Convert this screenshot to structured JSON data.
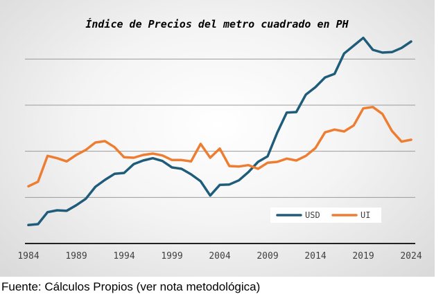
{
  "chart_data": {
    "type": "line",
    "title": "Índice de Precios del metro cuadrado en PH",
    "xlabel": "",
    "ylabel": "",
    "x": [
      1984,
      1985,
      1986,
      1987,
      1988,
      1989,
      1990,
      1991,
      1992,
      1993,
      1994,
      1995,
      1996,
      1997,
      1998,
      1999,
      2000,
      2001,
      2002,
      2003,
      2004,
      2005,
      2006,
      2007,
      2008,
      2009,
      2010,
      2011,
      2012,
      2013,
      2014,
      2015,
      2016,
      2017,
      2018,
      2019,
      2020,
      2021,
      2022,
      2023,
      2024
    ],
    "x_ticks": [
      "1984",
      "1989",
      "1994",
      "1999",
      "2004",
      "2009",
      "2014",
      "2019",
      "2024"
    ],
    "xlim": [
      1984,
      2024
    ],
    "ylim": [
      0,
      4.5
    ],
    "y_gridlines": [
      1,
      2,
      3,
      4
    ],
    "y_tick_labels_shown": false,
    "grid": true,
    "legend_position": "bottom-right",
    "series": [
      {
        "name": "USD",
        "color": "#1f5c7a",
        "values": [
          0.4,
          0.42,
          0.68,
          0.72,
          0.71,
          0.83,
          0.97,
          1.23,
          1.38,
          1.51,
          1.53,
          1.72,
          1.8,
          1.85,
          1.79,
          1.65,
          1.62,
          1.5,
          1.35,
          1.04,
          1.27,
          1.28,
          1.37,
          1.55,
          1.77,
          1.89,
          2.4,
          2.84,
          2.85,
          3.23,
          3.39,
          3.6,
          3.68,
          4.12,
          4.29,
          4.46,
          4.2,
          4.14,
          4.15,
          4.24,
          4.38
        ]
      },
      {
        "name": "UI",
        "color": "#ed7d31",
        "values": [
          1.24,
          1.34,
          1.9,
          1.85,
          1.78,
          1.92,
          2.03,
          2.19,
          2.22,
          2.09,
          1.87,
          1.86,
          1.92,
          1.95,
          1.91,
          1.81,
          1.81,
          1.78,
          2.16,
          1.86,
          2.06,
          1.68,
          1.67,
          1.7,
          1.62,
          1.75,
          1.77,
          1.84,
          1.8,
          1.9,
          2.07,
          2.41,
          2.47,
          2.43,
          2.56,
          2.93,
          2.96,
          2.81,
          2.44,
          2.21,
          2.25
        ]
      }
    ]
  },
  "source_note": "Fuente: Cálculos Propios (ver nota metodológica)"
}
